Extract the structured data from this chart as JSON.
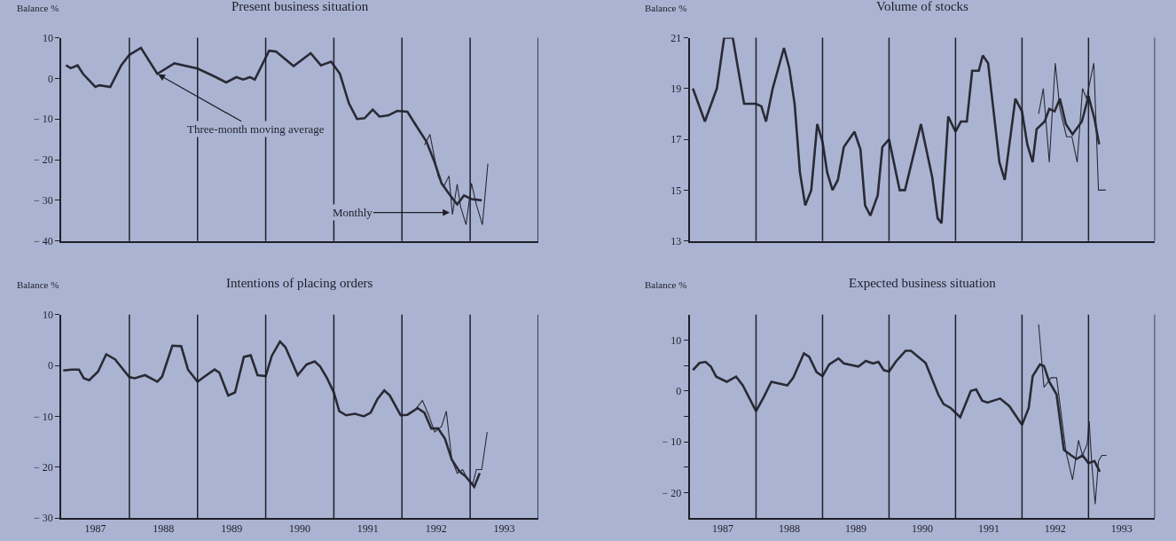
{
  "chart_data": [
    {
      "type": "line",
      "title": "Present business situation",
      "ylabel": "Balance %",
      "xlim": [
        1987,
        1994
      ],
      "ylim": [
        -40,
        10
      ],
      "yticks": [
        -40,
        -30,
        -20,
        -10,
        0,
        10
      ],
      "tick_labels": "y",
      "ref_lines": [
        {
          "axis": "x",
          "value": 1988,
          "color": "#1e1e28"
        },
        {
          "axis": "x",
          "value": 1989,
          "color": "#1e1e28"
        },
        {
          "axis": "x",
          "value": 1990,
          "color": "#1e1e28"
        },
        {
          "axis": "x",
          "value": 1991,
          "color": "#1e1e28"
        },
        {
          "axis": "x",
          "value": 1992,
          "color": "#1e1e28"
        },
        {
          "axis": "x",
          "value": 1993,
          "color": "#1e1e28"
        },
        {
          "axis": "x",
          "value": 1994,
          "color": "#1e1e28"
        }
      ],
      "annotations": [
        {
          "text": "Three-month moving average",
          "x": 1988.42,
          "y": 1.0
        },
        {
          "text": "Monthly",
          "x": 1992.7,
          "y": -33.0
        }
      ],
      "series": [
        {
          "color": "#2a2a35",
          "x": [
            1987.07,
            1987.14,
            1987.24,
            1987.32,
            1987.5,
            1987.56,
            1987.72,
            1987.88,
            1988.0,
            1988.17,
            1988.41,
            1988.66,
            1989.0,
            1989.27,
            1989.42,
            1989.57,
            1989.67,
            1989.77,
            1989.84,
            1990.05,
            1990.15,
            1990.41,
            1990.66,
            1990.81,
            1990.96,
            1991.09,
            1991.22,
            1991.34,
            1991.45,
            1991.57,
            1991.67,
            1991.8,
            1991.93,
            1992.08,
            1992.21,
            1992.36,
            1992.48,
            1992.58,
            1992.69,
            1992.81,
            1992.91,
            1993.02,
            1993.17
          ],
          "values": [
            3.2,
            2.5,
            3.2,
            1.1,
            -2.1,
            -1.7,
            -2.1,
            3.2,
            5.8,
            7.5,
            1.1,
            3.7,
            2.4,
            0.3,
            -1.0,
            0.3,
            -0.3,
            0.3,
            -0.3,
            6.8,
            6.6,
            3.0,
            6.2,
            3.2,
            4.1,
            1.1,
            -6.1,
            -10.0,
            -9.8,
            -7.7,
            -9.4,
            -9.1,
            -8.0,
            -8.2,
            -11.7,
            -15.6,
            -20.7,
            -25.8,
            -28.4,
            -31.0,
            -28.8,
            -29.7,
            -30.0
          ]
        },
        {
          "color": "#2a2a35",
          "x": [
            1992.33,
            1992.41,
            1992.53,
            1992.61,
            1992.69,
            1992.74,
            1992.81,
            1992.86,
            1992.94,
            1993.02,
            1993.09,
            1993.18,
            1993.26
          ],
          "values": [
            -16.4,
            -13.8,
            -24.0,
            -26.7,
            -24.0,
            -33.5,
            -26.0,
            -31.6,
            -36.0,
            -25.8,
            -31.0,
            -36.0,
            -21.0
          ]
        }
      ]
    },
    {
      "type": "line",
      "title": "Volume of stocks",
      "ylabel": "Balance %",
      "xlim": [
        1987,
        1994
      ],
      "ylim": [
        13,
        21
      ],
      "yticks": [
        13,
        15,
        17,
        19,
        21
      ],
      "tick_labels": "y",
      "ref_lines": [
        {
          "axis": "x",
          "value": 1988,
          "color": "#1e1e28"
        },
        {
          "axis": "x",
          "value": 1989,
          "color": "#1e1e28"
        },
        {
          "axis": "x",
          "value": 1990,
          "color": "#1e1e28"
        },
        {
          "axis": "x",
          "value": 1991,
          "color": "#1e1e28"
        },
        {
          "axis": "x",
          "value": 1992,
          "color": "#1e1e28"
        },
        {
          "axis": "x",
          "value": 1993,
          "color": "#1e1e28"
        },
        {
          "axis": "x",
          "value": 1994,
          "color": "#1e1e28"
        }
      ],
      "series": [
        {
          "color": "#2a2a35",
          "x": [
            1987.05,
            1987.23,
            1987.41,
            1987.52,
            1987.65,
            1987.82,
            1988.0,
            1988.08,
            1988.15,
            1988.25,
            1988.42,
            1988.5,
            1988.58,
            1988.66,
            1988.74,
            1988.83,
            1988.92,
            1989.0,
            1989.07,
            1989.15,
            1989.23,
            1989.32,
            1989.48,
            1989.57,
            1989.64,
            1989.72,
            1989.83,
            1989.9,
            1990.0,
            1990.16,
            1990.24,
            1990.48,
            1990.65,
            1990.73,
            1990.79,
            1990.89,
            1991.0,
            1991.08,
            1991.17,
            1991.25,
            1991.35,
            1991.41,
            1991.49,
            1991.66,
            1991.74,
            1991.9,
            1992.0,
            1992.08,
            1992.16,
            1992.22,
            1992.34,
            1992.41,
            1992.49,
            1992.57,
            1992.66,
            1992.76,
            1992.9,
            1993.0,
            1993.09,
            1993.16
          ],
          "values": [
            19.0,
            17.7,
            19.0,
            21.0,
            21.0,
            18.4,
            18.4,
            18.3,
            17.7,
            19.0,
            20.6,
            19.8,
            18.4,
            15.7,
            14.4,
            15.0,
            17.6,
            16.9,
            15.7,
            15.0,
            15.4,
            16.7,
            17.3,
            16.6,
            14.4,
            14.0,
            14.8,
            16.7,
            17.0,
            15.0,
            15.0,
            17.6,
            15.5,
            13.9,
            13.7,
            17.9,
            17.3,
            17.7,
            17.7,
            19.7,
            19.7,
            20.3,
            20.0,
            16.1,
            15.4,
            18.6,
            18.1,
            16.8,
            16.1,
            17.4,
            17.7,
            18.2,
            18.1,
            18.6,
            17.6,
            17.2,
            17.7,
            18.7,
            17.8,
            16.8
          ]
        },
        {
          "color": "#2a2a35",
          "x": [
            1992.25,
            1992.32,
            1992.41,
            1992.5,
            1992.57,
            1992.67,
            1992.75,
            1992.83,
            1992.91,
            1992.97,
            1993.0,
            1993.08,
            1993.15,
            1993.26
          ],
          "values": [
            18.0,
            19.0,
            16.1,
            20.0,
            18.2,
            17.1,
            17.1,
            16.1,
            19.0,
            18.6,
            19.0,
            20.0,
            15.0,
            15.0
          ]
        }
      ]
    },
    {
      "type": "line",
      "title": "Intentions of placing orders",
      "ylabel": "Balance %",
      "xlim": [
        1987,
        1994
      ],
      "ylim": [
        -30,
        10
      ],
      "yticks": [
        -30,
        -20,
        -10,
        0,
        10
      ],
      "xticks": [
        {
          "value": 1987.5,
          "label": "1987"
        },
        {
          "value": 1988.5,
          "label": "1988"
        },
        {
          "value": 1989.5,
          "label": "1989"
        },
        {
          "value": 1990.5,
          "label": "1990"
        },
        {
          "value": 1991.5,
          "label": "1991"
        },
        {
          "value": 1992.5,
          "label": "1992"
        },
        {
          "value": 1993.5,
          "label": "1993"
        }
      ],
      "ref_lines": [
        {
          "axis": "x",
          "value": 1988,
          "color": "#1e1e28"
        },
        {
          "axis": "x",
          "value": 1989,
          "color": "#1e1e28"
        },
        {
          "axis": "x",
          "value": 1990,
          "color": "#1e1e28"
        },
        {
          "axis": "x",
          "value": 1991,
          "color": "#1e1e28"
        },
        {
          "axis": "x",
          "value": 1992,
          "color": "#1e1e28"
        },
        {
          "axis": "x",
          "value": 1993,
          "color": "#1e1e28"
        },
        {
          "axis": "x",
          "value": 1994,
          "color": "#1e1e28"
        }
      ],
      "series": [
        {
          "color": "#2a2a35",
          "x": [
            1987.03,
            1987.15,
            1987.26,
            1987.33,
            1987.41,
            1987.54,
            1987.66,
            1987.79,
            1988.0,
            1988.08,
            1988.23,
            1988.41,
            1988.48,
            1988.63,
            1988.76,
            1988.86,
            1989.0,
            1989.1,
            1989.25,
            1989.32,
            1989.45,
            1989.55,
            1989.68,
            1989.78,
            1989.88,
            1990.0,
            1990.09,
            1990.21,
            1990.29,
            1990.47,
            1990.6,
            1990.72,
            1990.8,
            1990.9,
            1991.0,
            1991.08,
            1991.18,
            1991.31,
            1991.44,
            1991.54,
            1991.64,
            1991.74,
            1991.82,
            1991.98,
            1992.08,
            1992.23,
            1992.33,
            1992.43,
            1992.53,
            1992.63,
            1992.73,
            1992.84,
            1992.94,
            1993.06,
            1993.14
          ],
          "values": [
            -1.0,
            -0.8,
            -0.8,
            -2.5,
            -2.9,
            -1.2,
            2.2,
            1.2,
            -2.3,
            -2.5,
            -1.9,
            -3.2,
            -2.2,
            3.9,
            3.8,
            -0.8,
            -3.2,
            -2.2,
            -0.8,
            -1.4,
            -5.9,
            -5.3,
            1.7,
            2.0,
            -1.9,
            -2.1,
            1.9,
            4.7,
            3.6,
            -1.9,
            0.2,
            0.8,
            -0.2,
            -2.5,
            -5.3,
            -9.0,
            -9.8,
            -9.5,
            -10.0,
            -9.3,
            -6.6,
            -4.9,
            -5.9,
            -9.8,
            -9.7,
            -8.4,
            -9.3,
            -12.4,
            -12.4,
            -14.4,
            -18.5,
            -20.8,
            -21.9,
            -23.9,
            -21.2
          ]
        },
        {
          "color": "#2a2a35",
          "x": [
            1992.2,
            1992.3,
            1992.39,
            1992.48,
            1992.58,
            1992.65,
            1992.73,
            1992.81,
            1992.89,
            1992.97,
            1993.04,
            1993.09,
            1993.17,
            1993.25
          ],
          "values": [
            -8.6,
            -6.9,
            -9.7,
            -13.1,
            -12.0,
            -9.0,
            -18.5,
            -21.2,
            -20.5,
            -22.5,
            -23.2,
            -20.5,
            -20.5,
            -13.1
          ]
        }
      ]
    },
    {
      "type": "line",
      "title": "Expected business situation",
      "ylabel": "Balance %",
      "xlim": [
        1987,
        1994
      ],
      "ylim": [
        -25,
        15
      ],
      "yticks": [
        -20,
        {
          "value": -15,
          "label": null
        },
        -10,
        {
          "value": -5,
          "label": null
        },
        0,
        {
          "value": 5,
          "label": null
        },
        10
      ],
      "xticks": [
        {
          "value": 1987.5,
          "label": "1987"
        },
        {
          "value": 1988.5,
          "label": "1988"
        },
        {
          "value": 1989.5,
          "label": "1989"
        },
        {
          "value": 1990.5,
          "label": "1990"
        },
        {
          "value": 1991.5,
          "label": "1991"
        },
        {
          "value": 1992.5,
          "label": "1992"
        },
        {
          "value": 1993.5,
          "label": "1993"
        }
      ],
      "ref_lines": [
        {
          "axis": "x",
          "value": 1988,
          "color": "#1e1e28"
        },
        {
          "axis": "x",
          "value": 1989,
          "color": "#1e1e28"
        },
        {
          "axis": "x",
          "value": 1990,
          "color": "#1e1e28"
        },
        {
          "axis": "x",
          "value": 1991,
          "color": "#1e1e28"
        },
        {
          "axis": "x",
          "value": 1992,
          "color": "#1e1e28"
        },
        {
          "axis": "x",
          "value": 1993,
          "color": "#1e1e28"
        },
        {
          "axis": "x",
          "value": 1994,
          "color": "#1e1e28"
        }
      ],
      "series": [
        {
          "color": "#2a2a35",
          "x": [
            1987.05,
            1987.15,
            1987.24,
            1987.32,
            1987.4,
            1987.56,
            1987.7,
            1987.8,
            1988.0,
            1988.12,
            1988.23,
            1988.47,
            1988.56,
            1988.72,
            1988.8,
            1988.91,
            1989.0,
            1989.1,
            1989.24,
            1989.32,
            1989.54,
            1989.65,
            1989.76,
            1989.84,
            1989.92,
            1990.0,
            1990.11,
            1990.25,
            1990.33,
            1990.55,
            1990.74,
            1990.82,
            1990.93,
            1991.07,
            1991.23,
            1991.31,
            1991.4,
            1991.48,
            1991.67,
            1991.81,
            1992.0,
            1992.1,
            1992.16,
            1992.27,
            1992.33,
            1992.41,
            1992.52,
            1992.63,
            1992.74,
            1992.82,
            1992.91,
            1993.0,
            1993.09,
            1993.17
          ],
          "values": [
            4.1,
            5.5,
            5.7,
            4.8,
            2.8,
            1.8,
            2.8,
            1.1,
            -4.0,
            -1.1,
            1.8,
            1.1,
            2.6,
            7.4,
            6.7,
            3.7,
            2.9,
            5.2,
            6.4,
            5.4,
            4.8,
            5.9,
            5.4,
            5.7,
            4.1,
            3.8,
            5.9,
            7.9,
            7.9,
            5.5,
            -0.7,
            -2.6,
            -3.4,
            -5.2,
            0.0,
            0.3,
            -1.9,
            -2.3,
            -1.5,
            -3.0,
            -6.7,
            -3.4,
            2.9,
            5.2,
            4.9,
            1.8,
            -0.7,
            -11.6,
            -12.7,
            -13.4,
            -12.7,
            -14.2,
            -13.8,
            -15.9
          ]
        },
        {
          "color": "#2a2a35",
          "x": [
            1992.25,
            1992.33,
            1992.44,
            1992.52,
            1992.66,
            1992.76,
            1992.85,
            1992.91,
            1992.98,
            1993.01,
            1993.05,
            1993.1,
            1993.15,
            1993.2,
            1993.27
          ],
          "values": [
            13.1,
            0.7,
            2.6,
            2.6,
            -11.9,
            -17.5,
            -9.7,
            -12.7,
            -10.4,
            -6.0,
            -14.5,
            -22.3,
            -13.8,
            -12.7,
            -12.7
          ]
        }
      ]
    }
  ]
}
